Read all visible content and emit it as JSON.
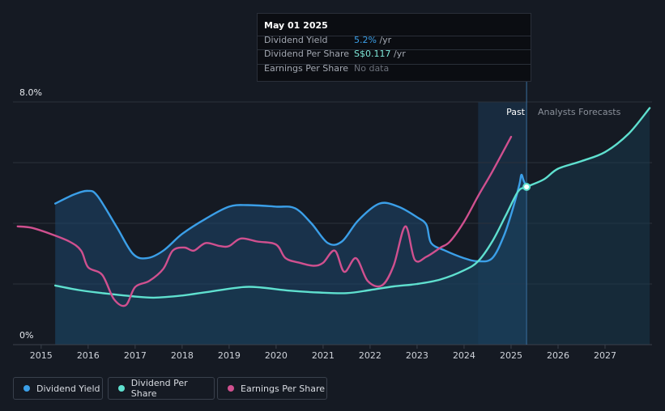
{
  "tooltip": {
    "date": "May 01 2025",
    "rows": [
      {
        "label": "Dividend Yield",
        "value": "5.2%",
        "unit": "/yr",
        "color": "#3b9fe8"
      },
      {
        "label": "Dividend Per Share",
        "value": "S$0.117",
        "unit": "/yr",
        "color": "#7ee8d8"
      },
      {
        "label": "Earnings Per Share",
        "value": "No data",
        "unit": "",
        "color": "#6b707a"
      }
    ]
  },
  "regions": {
    "past_label": "Past",
    "forecast_label": "Analysts Forecasts"
  },
  "legend": [
    {
      "label": "Dividend Yield",
      "color": "#3b9fe8"
    },
    {
      "label": "Dividend Per Share",
      "color": "#5fe0cf"
    },
    {
      "label": "Earnings Per Share",
      "color": "#d0508f"
    }
  ],
  "chart_data": {
    "type": "line",
    "y_ticks": [
      "8.0%",
      "0%"
    ],
    "ylim": [
      0,
      8
    ],
    "xlim": [
      2014.4,
      2028
    ],
    "x_ticks": [
      "2015",
      "2016",
      "2017",
      "2018",
      "2019",
      "2020",
      "2021",
      "2022",
      "2023",
      "2024",
      "2025",
      "2026",
      "2027"
    ],
    "past_region": [
      2024.3,
      2025.33
    ],
    "highlight_x": 2025.33,
    "grid": true,
    "series": [
      {
        "name": "Dividend Yield",
        "color": "#3b9fe8",
        "area": true,
        "points": [
          [
            2015.3,
            4.65
          ],
          [
            2015.7,
            4.95
          ],
          [
            2016.0,
            5.07
          ],
          [
            2016.2,
            4.9
          ],
          [
            2016.6,
            3.9
          ],
          [
            2016.95,
            3.0
          ],
          [
            2017.25,
            2.85
          ],
          [
            2017.6,
            3.1
          ],
          [
            2018.0,
            3.65
          ],
          [
            2018.5,
            4.15
          ],
          [
            2019.0,
            4.55
          ],
          [
            2019.4,
            4.6
          ],
          [
            2020.0,
            4.55
          ],
          [
            2020.4,
            4.5
          ],
          [
            2020.75,
            4.0
          ],
          [
            2021.1,
            3.35
          ],
          [
            2021.4,
            3.4
          ],
          [
            2021.75,
            4.1
          ],
          [
            2022.2,
            4.65
          ],
          [
            2022.6,
            4.55
          ],
          [
            2023.0,
            4.2
          ],
          [
            2023.2,
            3.95
          ],
          [
            2023.3,
            3.35
          ],
          [
            2023.6,
            3.1
          ],
          [
            2024.0,
            2.85
          ],
          [
            2024.3,
            2.75
          ],
          [
            2024.6,
            2.85
          ],
          [
            2024.85,
            3.6
          ],
          [
            2025.05,
            4.55
          ],
          [
            2025.18,
            5.3
          ],
          [
            2025.22,
            5.6
          ],
          [
            2025.27,
            5.4
          ],
          [
            2025.33,
            5.2
          ]
        ]
      },
      {
        "name": "Dividend Per Share",
        "color": "#5fe0cf",
        "area": true,
        "points": [
          [
            2015.3,
            1.95
          ],
          [
            2015.8,
            1.8
          ],
          [
            2016.3,
            1.7
          ],
          [
            2016.9,
            1.6
          ],
          [
            2017.4,
            1.55
          ],
          [
            2018.0,
            1.62
          ],
          [
            2018.6,
            1.75
          ],
          [
            2019.3,
            1.9
          ],
          [
            2019.7,
            1.88
          ],
          [
            2020.3,
            1.78
          ],
          [
            2020.9,
            1.72
          ],
          [
            2021.5,
            1.7
          ],
          [
            2022.0,
            1.8
          ],
          [
            2022.5,
            1.92
          ],
          [
            2023.0,
            2.0
          ],
          [
            2023.5,
            2.15
          ],
          [
            2024.0,
            2.45
          ],
          [
            2024.3,
            2.75
          ],
          [
            2024.6,
            3.4
          ],
          [
            2024.9,
            4.3
          ],
          [
            2025.15,
            5.05
          ],
          [
            2025.33,
            5.2
          ],
          [
            2025.7,
            5.45
          ],
          [
            2026.0,
            5.8
          ],
          [
            2026.5,
            6.05
          ],
          [
            2027.0,
            6.35
          ],
          [
            2027.5,
            6.95
          ],
          [
            2027.95,
            7.8
          ]
        ]
      },
      {
        "name": "Earnings Per Share",
        "color": "#d0508f",
        "area": false,
        "points": [
          [
            2014.5,
            3.9
          ],
          [
            2014.8,
            3.85
          ],
          [
            2015.2,
            3.65
          ],
          [
            2015.6,
            3.4
          ],
          [
            2015.85,
            3.1
          ],
          [
            2016.0,
            2.55
          ],
          [
            2016.3,
            2.3
          ],
          [
            2016.55,
            1.5
          ],
          [
            2016.8,
            1.3
          ],
          [
            2017.0,
            1.9
          ],
          [
            2017.3,
            2.1
          ],
          [
            2017.6,
            2.5
          ],
          [
            2017.8,
            3.1
          ],
          [
            2018.05,
            3.2
          ],
          [
            2018.25,
            3.1
          ],
          [
            2018.5,
            3.35
          ],
          [
            2018.8,
            3.25
          ],
          [
            2019.0,
            3.25
          ],
          [
            2019.25,
            3.5
          ],
          [
            2019.6,
            3.4
          ],
          [
            2020.0,
            3.3
          ],
          [
            2020.2,
            2.85
          ],
          [
            2020.5,
            2.7
          ],
          [
            2020.8,
            2.6
          ],
          [
            2021.0,
            2.7
          ],
          [
            2021.25,
            3.1
          ],
          [
            2021.45,
            2.4
          ],
          [
            2021.7,
            2.85
          ],
          [
            2021.95,
            2.1
          ],
          [
            2022.25,
            1.95
          ],
          [
            2022.5,
            2.6
          ],
          [
            2022.75,
            3.9
          ],
          [
            2022.95,
            2.8
          ],
          [
            2023.2,
            2.9
          ],
          [
            2023.5,
            3.2
          ],
          [
            2023.7,
            3.4
          ],
          [
            2024.0,
            4.05
          ],
          [
            2024.3,
            4.9
          ],
          [
            2024.6,
            5.7
          ],
          [
            2025.0,
            6.85
          ]
        ]
      }
    ]
  }
}
